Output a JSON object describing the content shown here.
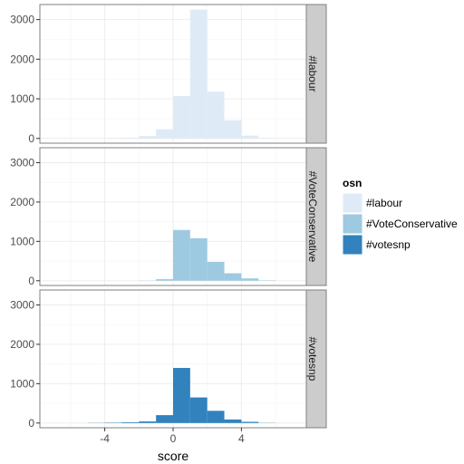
{
  "chart_data": {
    "type": "bar",
    "subtype": "faceted-histogram",
    "xlabel": "score",
    "ylabel": "",
    "xlim": [
      -7.8,
      7.8
    ],
    "ylim": [
      -120,
      3380
    ],
    "x_ticks": [
      -4,
      0,
      4
    ],
    "x_tick_labels": [
      "-4",
      "0",
      "4"
    ],
    "y_ticks": [
      0,
      1000,
      2000,
      3000
    ],
    "y_tick_labels": [
      "0",
      "1000",
      "2000",
      "3000"
    ],
    "bin_edges": [
      -5,
      -4,
      -3,
      -2,
      -1,
      0,
      1,
      2,
      3,
      4,
      5,
      6
    ],
    "grid": true,
    "legend": {
      "title": "osn",
      "position": "right",
      "entries": [
        "#labour",
        "#VoteConservative",
        "#votesnp"
      ]
    },
    "series": [
      {
        "name": "#labour",
        "facet_label": "#labour",
        "color": "#deebf7",
        "values": [
          5,
          10,
          20,
          60,
          230,
          1070,
          3250,
          1180,
          460,
          70,
          10
        ]
      },
      {
        "name": "#VoteConservative",
        "facet_label": "#VoteConservative",
        "color": "#9ecae1",
        "values": [
          0,
          0,
          0,
          5,
          40,
          1290,
          1080,
          480,
          190,
          60,
          10
        ]
      },
      {
        "name": "#votesnp",
        "facet_label": "#votesnp",
        "color": "#3182bd",
        "values": [
          5,
          10,
          20,
          40,
          200,
          1400,
          650,
          310,
          90,
          30,
          5
        ]
      }
    ]
  }
}
